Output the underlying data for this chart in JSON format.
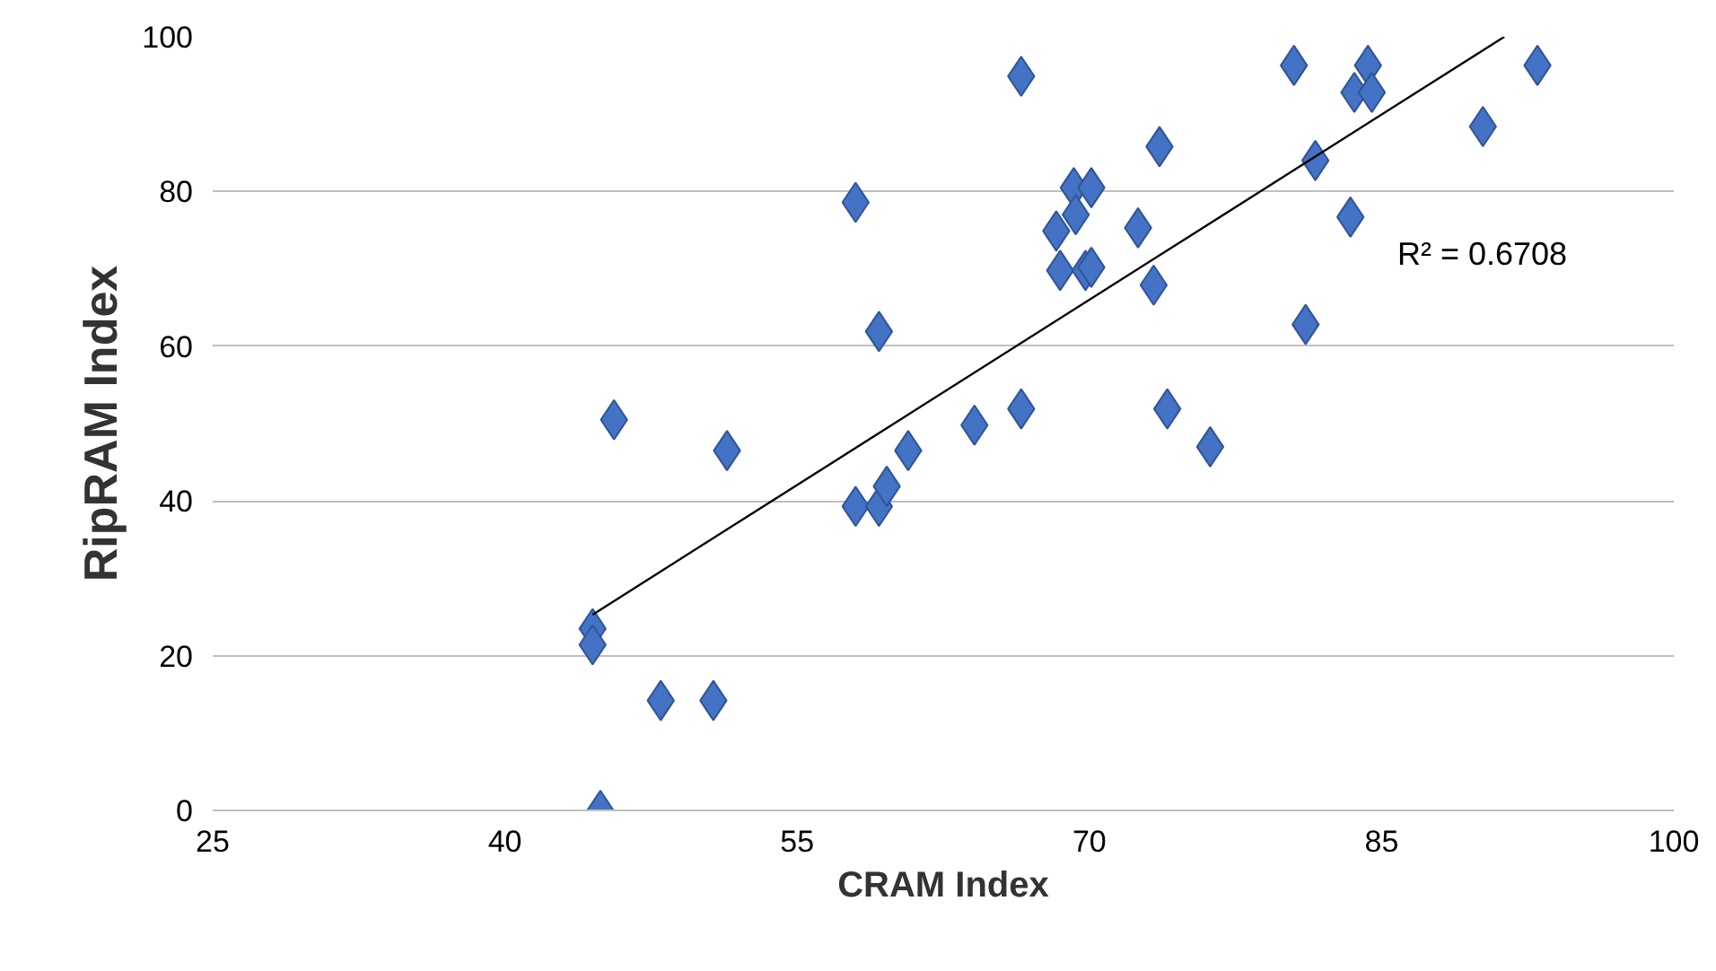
{
  "chart_data": {
    "type": "scatter",
    "xlabel": "CRAM Index",
    "ylabel": "RipRAM Index",
    "xlim": [
      25,
      100
    ],
    "xticks": [
      25,
      40,
      55,
      70,
      85,
      100
    ],
    "ylim": [
      0,
      100
    ],
    "yticks": [
      0,
      20,
      40,
      60,
      80,
      100
    ],
    "grid": "y",
    "annotations": [
      "R² = 0.6708"
    ],
    "series": [
      {
        "color": "#4472c4",
        "marker": "diamond",
        "x": [
          44.5,
          44.5,
          44.9,
          45.6,
          48.0,
          50.7,
          51.4,
          58.0,
          58.0,
          59.2,
          59.2,
          59.6,
          60.7,
          64.1,
          66.5,
          66.5,
          68.3,
          68.5,
          69.2,
          69.3,
          69.8,
          70.1,
          70.1,
          72.5,
          73.3,
          73.6,
          74.0,
          76.2,
          80.5,
          81.1,
          81.6,
          83.4,
          83.6,
          84.3,
          84.5,
          90.2,
          93.0
        ],
        "values": [
          23.5,
          21.4,
          0,
          50.5,
          14.2,
          14.2,
          46.5,
          78.6,
          39.3,
          39.3,
          61.9,
          41.9,
          46.5,
          49.8,
          94.9,
          51.9,
          74.9,
          69.8,
          80.5,
          77.0,
          69.8,
          70.2,
          80.5,
          75.3,
          67.9,
          85.8,
          51.9,
          47.0,
          96.3,
          62.8,
          84.0,
          76.7,
          92.8,
          96.3,
          92.8,
          88.4,
          96.3
        ]
      },
      {
        "type": "line",
        "marker": "none",
        "color": "#000000",
        "x": [
          44.5,
          91.3
        ],
        "values": [
          25.3,
          100
        ]
      }
    ]
  }
}
